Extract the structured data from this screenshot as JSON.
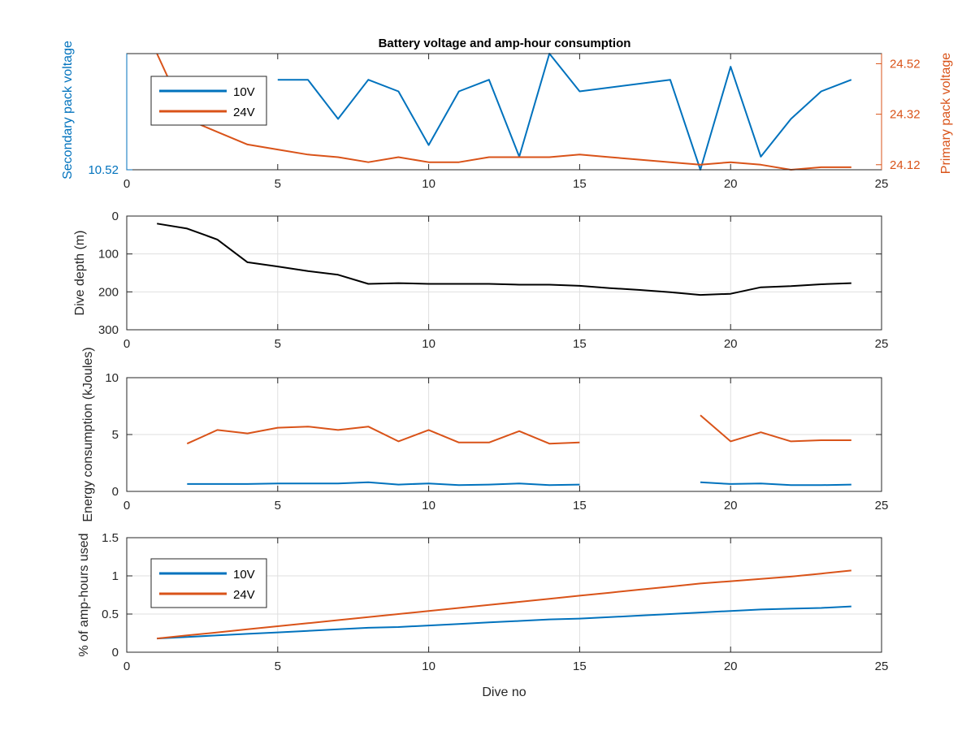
{
  "figure": {
    "title": "Battery voltage and amp-hour consumption"
  },
  "colors": {
    "s10V": "#0072BD",
    "s24V": "#D95319",
    "depth": "#000000",
    "axis": "#262626",
    "grid": "#dfdfdf"
  },
  "chart_data": [
    {
      "type": "line",
      "title": "Battery voltage and amp-hour consumption",
      "xlabel": "",
      "ylabel_left": "Secondary pack voltage",
      "ylabel_right": "Primary pack voltage",
      "xlim": [
        0,
        25
      ],
      "xticks": [
        0,
        5,
        10,
        15,
        20,
        25
      ],
      "ylim_left": [
        10.52,
        10.6
      ],
      "yticks_left": [
        10.52
      ],
      "ylim_right": [
        24.1,
        24.56
      ],
      "yticks_right": [
        24.12,
        24.32,
        24.52
      ],
      "grid": false,
      "legend": {
        "placement": "top-left",
        "entries": [
          "10V",
          "24V"
        ]
      },
      "series": [
        {
          "name": "10V",
          "axis": "left",
          "x": [
            5,
            6,
            7,
            8,
            9,
            10,
            11,
            12,
            13,
            14,
            15,
            18,
            19,
            20,
            21,
            22,
            23,
            24
          ],
          "y": [
            10.582,
            10.582,
            10.555,
            10.582,
            10.574,
            10.537,
            10.574,
            10.582,
            10.529,
            10.6,
            10.574,
            10.582,
            10.52,
            10.591,
            10.529,
            10.555,
            10.574,
            10.582
          ]
        },
        {
          "name": "24V",
          "axis": "right",
          "x": [
            1,
            2,
            3,
            4,
            5,
            6,
            7,
            8,
            9,
            10,
            11,
            12,
            13,
            14,
            15,
            16,
            17,
            18,
            19,
            20,
            21,
            22,
            23,
            24
          ],
          "y": [
            24.56,
            24.3,
            24.25,
            24.2,
            24.18,
            24.16,
            24.15,
            24.13,
            24.15,
            24.13,
            24.13,
            24.15,
            24.15,
            24.15,
            24.16,
            24.15,
            24.14,
            24.13,
            24.12,
            24.13,
            24.12,
            24.1,
            24.11,
            24.11
          ]
        }
      ]
    },
    {
      "type": "line",
      "xlabel": "",
      "ylabel": "Dive depth (m)",
      "xlim": [
        0,
        25
      ],
      "xticks": [
        0,
        5,
        10,
        15,
        20,
        25
      ],
      "ylim": [
        0,
        300
      ],
      "yticks": [
        0,
        100,
        200,
        300
      ],
      "y_reversed": true,
      "grid": true,
      "series": [
        {
          "x": [
            1,
            2,
            3,
            4,
            5,
            6,
            7,
            8,
            9,
            10,
            11,
            12,
            13,
            14,
            15,
            16,
            17,
            18,
            19,
            20,
            21,
            22,
            23,
            24
          ],
          "y": [
            20,
            33,
            62,
            122,
            133,
            145,
            155,
            179,
            177,
            179,
            179,
            179,
            181,
            181,
            184,
            190,
            195,
            201,
            208,
            205,
            188,
            185,
            180,
            177
          ]
        }
      ]
    },
    {
      "type": "line",
      "xlabel": "",
      "ylabel": "Energy consumption (kJoules)",
      "xlim": [
        0,
        25
      ],
      "xticks": [
        0,
        5,
        10,
        15,
        20,
        25
      ],
      "ylim": [
        0,
        10
      ],
      "yticks": [
        0,
        5,
        10
      ],
      "grid": true,
      "series": [
        {
          "name": "10V",
          "x": [
            2,
            3,
            4,
            5,
            6,
            7,
            8,
            9,
            10,
            11,
            12,
            13,
            14,
            15,
            null,
            19,
            20,
            21,
            22,
            23,
            24
          ],
          "y": [
            0.65,
            0.65,
            0.65,
            0.7,
            0.7,
            0.7,
            0.8,
            0.6,
            0.7,
            0.55,
            0.6,
            0.7,
            0.55,
            0.6,
            null,
            0.8,
            0.65,
            0.7,
            0.55,
            0.55,
            0.6
          ]
        },
        {
          "name": "24V",
          "x": [
            2,
            3,
            4,
            5,
            6,
            7,
            8,
            9,
            10,
            11,
            12,
            13,
            14,
            15,
            null,
            19,
            20,
            21,
            22,
            23,
            24
          ],
          "y": [
            4.2,
            5.4,
            5.1,
            5.6,
            5.7,
            5.4,
            5.7,
            4.4,
            5.4,
            4.3,
            4.3,
            5.3,
            4.2,
            4.3,
            null,
            6.7,
            4.4,
            5.2,
            4.4,
            4.5,
            4.5
          ]
        }
      ]
    },
    {
      "type": "line",
      "xlabel": "Dive no",
      "ylabel": "% of amp-hours used",
      "xlim": [
        0,
        25
      ],
      "xticks": [
        0,
        5,
        10,
        15,
        20,
        25
      ],
      "ylim": [
        0,
        1.5
      ],
      "yticks": [
        0,
        0.5,
        1,
        1.5
      ],
      "grid": true,
      "legend": {
        "placement": "top-left",
        "entries": [
          "10V",
          "24V"
        ]
      },
      "series": [
        {
          "name": "10V",
          "x": [
            1,
            2,
            3,
            4,
            5,
            6,
            7,
            8,
            9,
            10,
            11,
            12,
            13,
            14,
            15,
            16,
            17,
            18,
            19,
            20,
            21,
            22,
            23,
            24
          ],
          "y": [
            0.18,
            0.2,
            0.22,
            0.24,
            0.26,
            0.28,
            0.3,
            0.32,
            0.33,
            0.35,
            0.37,
            0.39,
            0.41,
            0.43,
            0.44,
            0.46,
            0.48,
            0.5,
            0.52,
            0.54,
            0.56,
            0.57,
            0.58,
            0.6
          ]
        },
        {
          "name": "24V",
          "x": [
            1,
            2,
            3,
            4,
            5,
            6,
            7,
            8,
            9,
            10,
            11,
            12,
            13,
            14,
            15,
            16,
            17,
            18,
            19,
            20,
            21,
            22,
            23,
            24
          ],
          "y": [
            0.18,
            0.22,
            0.26,
            0.3,
            0.34,
            0.38,
            0.42,
            0.46,
            0.5,
            0.54,
            0.58,
            0.62,
            0.66,
            0.7,
            0.74,
            0.78,
            0.82,
            0.86,
            0.9,
            0.93,
            0.96,
            0.99,
            1.03,
            1.07
          ]
        }
      ]
    }
  ]
}
